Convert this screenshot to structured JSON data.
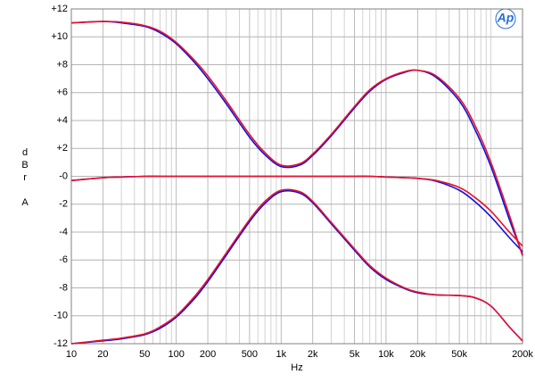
{
  "chart_data": {
    "type": "line",
    "xlabel": "Hz",
    "ylabel": "dBr A",
    "logo": "Ap",
    "xscale": "log",
    "grid": true,
    "x": [
      10,
      20,
      30,
      50,
      70,
      100,
      150,
      200,
      300,
      500,
      700,
      1000,
      1500,
      2000,
      3000,
      5000,
      7000,
      10000,
      15000,
      20000,
      30000,
      50000,
      70000,
      100000,
      150000,
      200000
    ],
    "series": [
      {
        "color": "#1010e0",
        "values": [
          11.0,
          11.1,
          11.0,
          10.75,
          10.3,
          9.5,
          8.15,
          7.0,
          5.2,
          2.8,
          1.55,
          0.7,
          0.8,
          1.5,
          2.9,
          4.9,
          6.1,
          6.95,
          7.45,
          7.6,
          7.1,
          5.4,
          3.4,
          0.7,
          -3.1,
          -5.6
        ]
      },
      {
        "color": "#1010e0",
        "values": [
          -0.3,
          -0.1,
          -0.05,
          0,
          0,
          0,
          0,
          0,
          0,
          0,
          0,
          0,
          0,
          0,
          0,
          0,
          0,
          -0.05,
          -0.1,
          -0.15,
          -0.35,
          -1.0,
          -1.8,
          -2.9,
          -4.4,
          -5.4
        ]
      },
      {
        "color": "#1010e0",
        "values": [
          -12.0,
          -11.8,
          -11.65,
          -11.35,
          -10.9,
          -10.1,
          -8.75,
          -7.55,
          -5.65,
          -3.25,
          -1.95,
          -1.1,
          -1.2,
          -1.9,
          -3.4,
          -5.3,
          -6.5,
          -7.4,
          -8.05,
          -8.35,
          -8.5,
          -8.55,
          -8.7,
          -9.3,
          -10.8,
          -11.8
        ]
      },
      {
        "color": "#e8102a",
        "values": [
          11.0,
          11.1,
          11.05,
          10.8,
          10.4,
          9.6,
          8.3,
          7.2,
          5.4,
          3.0,
          1.7,
          0.8,
          0.9,
          1.6,
          3.0,
          5.0,
          6.2,
          7.0,
          7.5,
          7.6,
          7.2,
          5.6,
          3.7,
          1.0,
          -2.8,
          -5.7
        ]
      },
      {
        "color": "#e8102a",
        "values": [
          -0.3,
          -0.1,
          -0.05,
          0,
          0,
          0,
          0,
          0,
          0,
          0,
          0,
          0,
          0,
          0,
          0,
          0,
          0,
          -0.05,
          -0.1,
          -0.15,
          -0.3,
          -0.8,
          -1.5,
          -2.5,
          -4.0,
          -5.0
        ]
      },
      {
        "color": "#e8102a",
        "values": [
          -12.0,
          -11.75,
          -11.6,
          -11.3,
          -10.8,
          -10.0,
          -8.6,
          -7.4,
          -5.5,
          -3.1,
          -1.8,
          -1.0,
          -1.1,
          -1.8,
          -3.3,
          -5.2,
          -6.4,
          -7.3,
          -8.0,
          -8.3,
          -8.5,
          -8.55,
          -8.7,
          -9.3,
          -10.8,
          -11.8
        ]
      }
    ],
    "xlim": [
      10,
      200000
    ],
    "ylim": [
      -12,
      12
    ],
    "xticks": [
      10,
      20,
      50,
      100,
      200,
      500,
      {
        "value": 1000,
        "label": "1k"
      },
      {
        "value": 2000,
        "label": "2k"
      },
      {
        "value": 5000,
        "label": "5k"
      },
      {
        "value": 10000,
        "label": "10k"
      },
      {
        "value": 20000,
        "label": "20k"
      },
      {
        "value": 50000,
        "label": "50k"
      },
      {
        "value": 200000,
        "label": "200k"
      }
    ],
    "xminorticks": [
      30,
      40,
      60,
      70,
      80,
      90,
      300,
      400,
      600,
      700,
      800,
      900,
      3000,
      4000,
      6000,
      7000,
      8000,
      9000,
      30000,
      40000,
      60000,
      70000,
      80000,
      90000,
      100000
    ],
    "yticks": [
      {
        "value": 12,
        "label": "+12"
      },
      {
        "value": 10,
        "label": "+10"
      },
      {
        "value": 8,
        "label": "+8"
      },
      {
        "value": 6,
        "label": "+6"
      },
      {
        "value": 4,
        "label": "+4"
      },
      {
        "value": 2,
        "label": "+2"
      },
      {
        "value": 0,
        "label": "-0"
      },
      -2,
      -4,
      -6,
      -8,
      -10,
      -12
    ]
  }
}
